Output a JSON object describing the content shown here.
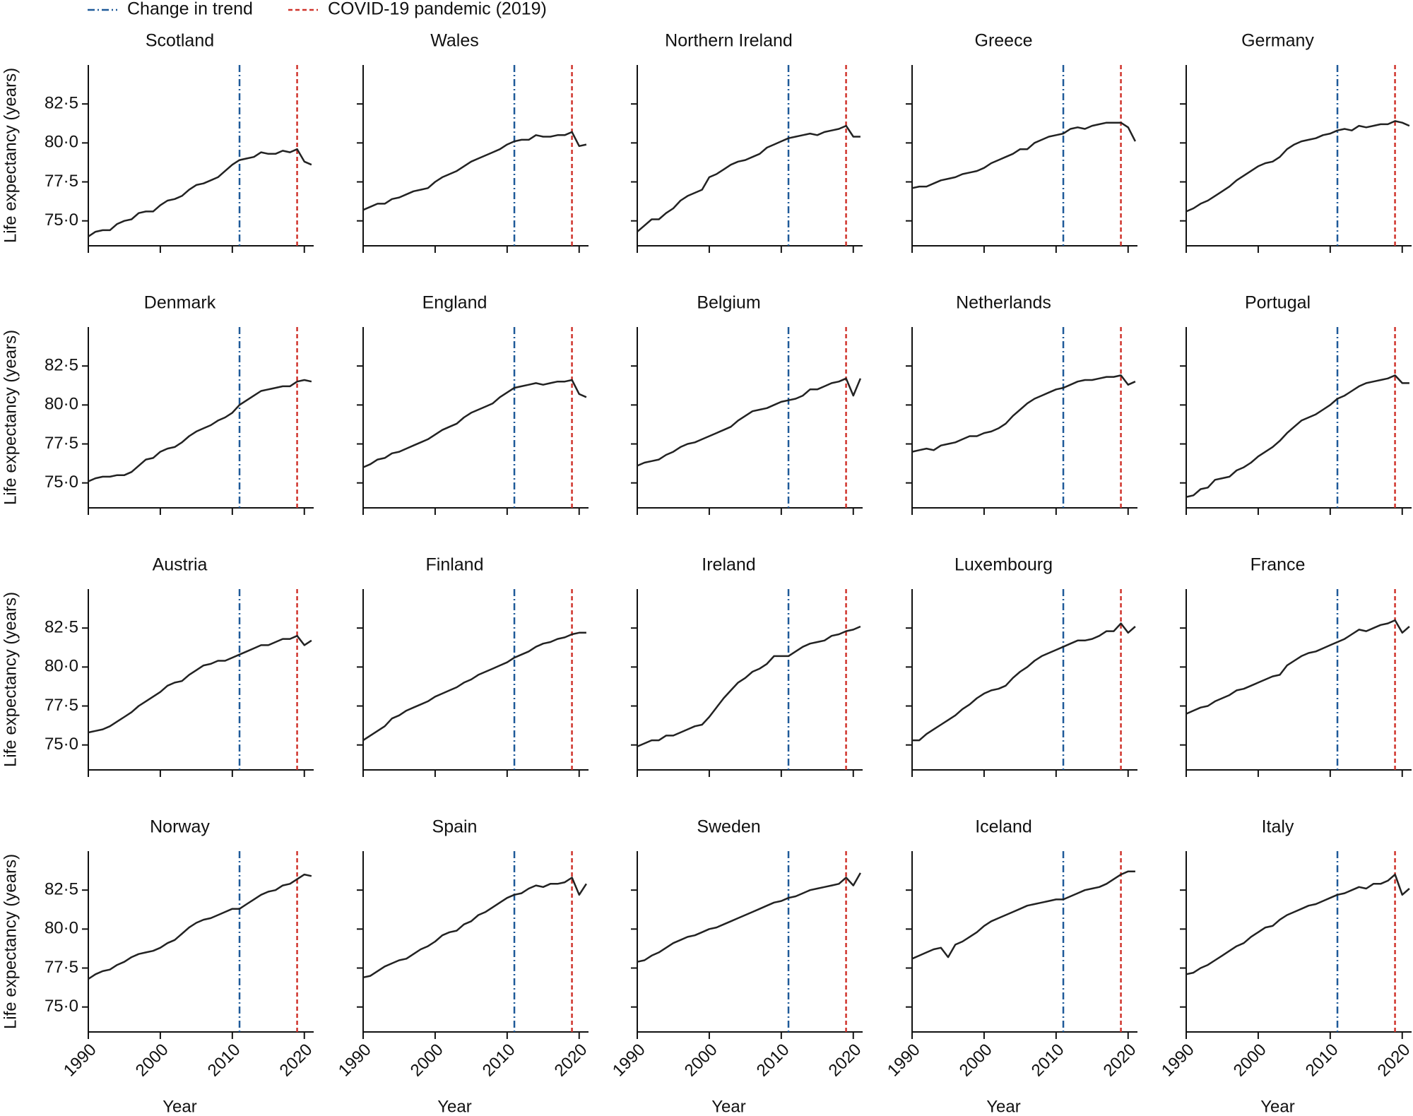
{
  "chart_data": {
    "type": "line",
    "x": [
      1990,
      1991,
      1992,
      1993,
      1994,
      1995,
      1996,
      1997,
      1998,
      1999,
      2000,
      2001,
      2002,
      2003,
      2004,
      2005,
      2006,
      2007,
      2008,
      2009,
      2010,
      2011,
      2012,
      2013,
      2014,
      2015,
      2016,
      2017,
      2018,
      2019,
      2020,
      2021
    ],
    "xlim": [
      1990,
      2021.3
    ],
    "xticks": [
      1990,
      2000,
      2010,
      2020
    ],
    "ylim": [
      73.4,
      85.0
    ],
    "yticks": [
      {
        "value": 75.0,
        "label": "75·0"
      },
      {
        "value": 77.5,
        "label": "77·5"
      },
      {
        "value": 80.0,
        "label": "80·0"
      },
      {
        "value": 82.5,
        "label": "82·5"
      }
    ],
    "xlabel": "Year",
    "ylabel": "Life expectancy (years)",
    "color": "#222222",
    "vlines": [
      {
        "name": "Change in trend",
        "x": 2011,
        "color": "#1f5a99",
        "dash": "10 4 2 4"
      },
      {
        "name": "COVID-19 pandemic (2019)",
        "x": 2019,
        "color": "#d0342c",
        "dash": "6 4"
      }
    ],
    "panels": [
      {
        "title": "Scotland",
        "values": [
          74.0,
          74.3,
          74.4,
          74.4,
          74.8,
          75.0,
          75.1,
          75.5,
          75.6,
          75.6,
          76.0,
          76.3,
          76.4,
          76.6,
          77.0,
          77.3,
          77.4,
          77.6,
          77.8,
          78.2,
          78.6,
          78.9,
          79.0,
          79.1,
          79.4,
          79.3,
          79.3,
          79.5,
          79.4,
          79.6,
          78.8,
          78.6
        ]
      },
      {
        "title": "Wales",
        "values": [
          75.7,
          75.9,
          76.1,
          76.1,
          76.4,
          76.5,
          76.7,
          76.9,
          77.0,
          77.1,
          77.5,
          77.8,
          78.0,
          78.2,
          78.5,
          78.8,
          79.0,
          79.2,
          79.4,
          79.6,
          79.9,
          80.1,
          80.2,
          80.2,
          80.5,
          80.4,
          80.4,
          80.5,
          80.5,
          80.7,
          79.8,
          79.9
        ]
      },
      {
        "title": "Northern Ireland",
        "values": [
          74.3,
          74.7,
          75.1,
          75.1,
          75.5,
          75.8,
          76.3,
          76.6,
          76.8,
          77.0,
          77.8,
          78.0,
          78.3,
          78.6,
          78.8,
          78.9,
          79.1,
          79.3,
          79.7,
          79.9,
          80.1,
          80.3,
          80.4,
          80.5,
          80.6,
          80.5,
          80.7,
          80.8,
          80.9,
          81.1,
          80.4,
          80.4
        ]
      },
      {
        "title": "Greece",
        "values": [
          77.1,
          77.2,
          77.2,
          77.4,
          77.6,
          77.7,
          77.8,
          78.0,
          78.1,
          78.2,
          78.4,
          78.7,
          78.9,
          79.1,
          79.3,
          79.6,
          79.6,
          80.0,
          80.2,
          80.4,
          80.5,
          80.6,
          80.9,
          81.0,
          80.9,
          81.1,
          81.2,
          81.3,
          81.3,
          81.3,
          81.0,
          80.1
        ]
      },
      {
        "title": "Germany",
        "values": [
          75.6,
          75.8,
          76.1,
          76.3,
          76.6,
          76.9,
          77.2,
          77.6,
          77.9,
          78.2,
          78.5,
          78.7,
          78.8,
          79.1,
          79.6,
          79.9,
          80.1,
          80.2,
          80.3,
          80.5,
          80.6,
          80.8,
          80.9,
          80.8,
          81.1,
          81.0,
          81.1,
          81.2,
          81.2,
          81.4,
          81.3,
          81.1
        ]
      },
      {
        "title": "Denmark",
        "values": [
          75.1,
          75.3,
          75.4,
          75.4,
          75.5,
          75.5,
          75.7,
          76.1,
          76.5,
          76.6,
          77.0,
          77.2,
          77.3,
          77.6,
          78.0,
          78.3,
          78.5,
          78.7,
          79.0,
          79.2,
          79.5,
          80.0,
          80.3,
          80.6,
          80.9,
          81.0,
          81.1,
          81.2,
          81.2,
          81.5,
          81.6,
          81.5
        ]
      },
      {
        "title": "England",
        "values": [
          76.0,
          76.2,
          76.5,
          76.6,
          76.9,
          77.0,
          77.2,
          77.4,
          77.6,
          77.8,
          78.1,
          78.4,
          78.6,
          78.8,
          79.2,
          79.5,
          79.7,
          79.9,
          80.1,
          80.5,
          80.8,
          81.1,
          81.2,
          81.3,
          81.4,
          81.3,
          81.4,
          81.5,
          81.5,
          81.6,
          80.7,
          80.5
        ]
      },
      {
        "title": "Belgium",
        "values": [
          76.1,
          76.3,
          76.4,
          76.5,
          76.8,
          77.0,
          77.3,
          77.5,
          77.6,
          77.8,
          78.0,
          78.2,
          78.4,
          78.6,
          79.0,
          79.3,
          79.6,
          79.7,
          79.8,
          80.0,
          80.2,
          80.3,
          80.4,
          80.6,
          81.0,
          81.0,
          81.2,
          81.4,
          81.5,
          81.7,
          80.6,
          81.7
        ]
      },
      {
        "title": "Netherlands",
        "values": [
          77.0,
          77.1,
          77.2,
          77.1,
          77.4,
          77.5,
          77.6,
          77.8,
          78.0,
          78.0,
          78.2,
          78.3,
          78.5,
          78.8,
          79.3,
          79.7,
          80.1,
          80.4,
          80.6,
          80.8,
          81.0,
          81.1,
          81.3,
          81.5,
          81.6,
          81.6,
          81.7,
          81.8,
          81.8,
          81.9,
          81.3,
          81.5
        ]
      },
      {
        "title": "Portugal",
        "values": [
          74.1,
          74.2,
          74.6,
          74.7,
          75.2,
          75.3,
          75.4,
          75.8,
          76.0,
          76.3,
          76.7,
          77.0,
          77.3,
          77.7,
          78.2,
          78.6,
          79.0,
          79.2,
          79.4,
          79.7,
          80.0,
          80.4,
          80.6,
          80.9,
          81.2,
          81.4,
          81.5,
          81.6,
          81.7,
          81.9,
          81.4,
          81.4
        ]
      },
      {
        "title": "Austria",
        "values": [
          75.8,
          75.9,
          76.0,
          76.2,
          76.5,
          76.8,
          77.1,
          77.5,
          77.8,
          78.1,
          78.4,
          78.8,
          79.0,
          79.1,
          79.5,
          79.8,
          80.1,
          80.2,
          80.4,
          80.4,
          80.6,
          80.8,
          81.0,
          81.2,
          81.4,
          81.4,
          81.6,
          81.8,
          81.8,
          82.0,
          81.4,
          81.7
        ]
      },
      {
        "title": "Finland",
        "values": [
          75.3,
          75.6,
          75.9,
          76.2,
          76.7,
          76.9,
          77.2,
          77.4,
          77.6,
          77.8,
          78.1,
          78.3,
          78.5,
          78.7,
          79.0,
          79.2,
          79.5,
          79.7,
          79.9,
          80.1,
          80.3,
          80.6,
          80.8,
          81.0,
          81.3,
          81.5,
          81.6,
          81.8,
          81.9,
          82.1,
          82.2,
          82.2
        ]
      },
      {
        "title": "Ireland",
        "values": [
          74.9,
          75.1,
          75.3,
          75.3,
          75.6,
          75.6,
          75.8,
          76.0,
          76.2,
          76.3,
          76.8,
          77.4,
          78.0,
          78.5,
          79.0,
          79.3,
          79.7,
          79.9,
          80.2,
          80.7,
          80.7,
          80.7,
          81.0,
          81.3,
          81.5,
          81.6,
          81.7,
          82.0,
          82.1,
          82.3,
          82.4,
          82.6
        ]
      },
      {
        "title": "Luxembourg",
        "values": [
          75.3,
          75.3,
          75.7,
          76.0,
          76.3,
          76.6,
          76.9,
          77.3,
          77.6,
          78.0,
          78.3,
          78.5,
          78.6,
          78.8,
          79.3,
          79.7,
          80.0,
          80.4,
          80.7,
          80.9,
          81.1,
          81.3,
          81.5,
          81.7,
          81.7,
          81.8,
          82.0,
          82.3,
          82.3,
          82.8,
          82.2,
          82.6
        ]
      },
      {
        "title": "France",
        "values": [
          77.0,
          77.2,
          77.4,
          77.5,
          77.8,
          78.0,
          78.2,
          78.5,
          78.6,
          78.8,
          79.0,
          79.2,
          79.4,
          79.5,
          80.1,
          80.4,
          80.7,
          80.9,
          81.0,
          81.2,
          81.4,
          81.6,
          81.8,
          82.1,
          82.4,
          82.3,
          82.5,
          82.7,
          82.8,
          83.0,
          82.2,
          82.6
        ]
      },
      {
        "title": "Norway",
        "values": [
          76.8,
          77.1,
          77.3,
          77.4,
          77.7,
          77.9,
          78.2,
          78.4,
          78.5,
          78.6,
          78.8,
          79.1,
          79.3,
          79.7,
          80.1,
          80.4,
          80.6,
          80.7,
          80.9,
          81.1,
          81.3,
          81.3,
          81.6,
          81.9,
          82.2,
          82.4,
          82.5,
          82.8,
          82.9,
          83.2,
          83.5,
          83.4
        ]
      },
      {
        "title": "Spain",
        "values": [
          76.9,
          77.0,
          77.3,
          77.6,
          77.8,
          78.0,
          78.1,
          78.4,
          78.7,
          78.9,
          79.2,
          79.6,
          79.8,
          79.9,
          80.3,
          80.5,
          80.9,
          81.1,
          81.4,
          81.7,
          82.0,
          82.2,
          82.3,
          82.6,
          82.8,
          82.7,
          82.9,
          82.9,
          83.0,
          83.3,
          82.2,
          82.9
        ]
      },
      {
        "title": "Sweden",
        "values": [
          77.9,
          78.0,
          78.3,
          78.5,
          78.8,
          79.1,
          79.3,
          79.5,
          79.6,
          79.8,
          80.0,
          80.1,
          80.3,
          80.5,
          80.7,
          80.9,
          81.1,
          81.3,
          81.5,
          81.7,
          81.8,
          82.0,
          82.1,
          82.3,
          82.5,
          82.6,
          82.7,
          82.8,
          82.9,
          83.3,
          82.8,
          83.6
        ]
      },
      {
        "title": "Iceland",
        "values": [
          78.1,
          78.3,
          78.5,
          78.7,
          78.8,
          78.2,
          79.0,
          79.2,
          79.5,
          79.8,
          80.2,
          80.5,
          80.7,
          80.9,
          81.1,
          81.3,
          81.5,
          81.6,
          81.7,
          81.8,
          81.9,
          81.9,
          82.1,
          82.3,
          82.5,
          82.6,
          82.7,
          82.9,
          83.2,
          83.5,
          83.7,
          83.7
        ]
      },
      {
        "title": "Italy",
        "values": [
          77.1,
          77.2,
          77.5,
          77.7,
          78.0,
          78.3,
          78.6,
          78.9,
          79.1,
          79.5,
          79.8,
          80.1,
          80.2,
          80.6,
          80.9,
          81.1,
          81.3,
          81.5,
          81.6,
          81.8,
          82.0,
          82.2,
          82.3,
          82.5,
          82.7,
          82.6,
          82.9,
          82.9,
          83.1,
          83.5,
          82.2,
          82.6
        ]
      }
    ]
  }
}
